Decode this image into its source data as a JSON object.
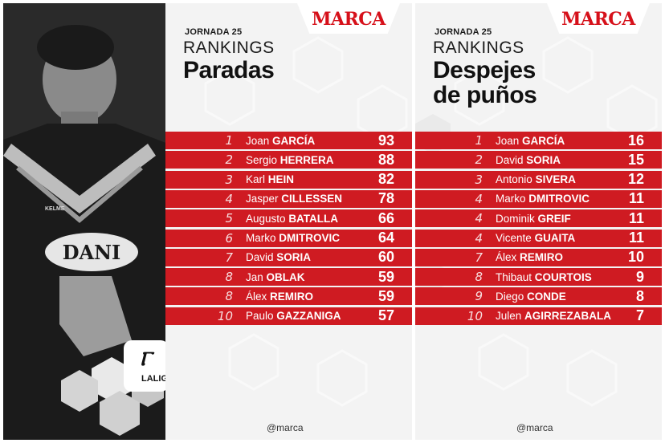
{
  "brand": "MARCA",
  "handle": "@marca",
  "league_logo_text": "LALIGA",
  "left": {
    "jornada": "JORNADA 25",
    "rankings": "RANKINGS",
    "title_lines": [
      "Paradas"
    ],
    "rows": [
      {
        "pos": "1",
        "first": "Joan",
        "last": "GARCÍA",
        "value": "93"
      },
      {
        "pos": "2",
        "first": "Sergio",
        "last": "HERRERA",
        "value": "88"
      },
      {
        "pos": "3",
        "first": "Karl",
        "last": "HEIN",
        "value": "82"
      },
      {
        "pos": "4",
        "first": "Jasper",
        "last": "CILLESSEN",
        "value": "78"
      },
      {
        "pos": "5",
        "first": "Augusto",
        "last": "BATALLA",
        "value": "66"
      },
      {
        "pos": "6",
        "first": "Marko",
        "last": "DMITROVIC",
        "value": "64"
      },
      {
        "pos": "7",
        "first": "David",
        "last": "SORIA",
        "value": "60"
      },
      {
        "pos": "8",
        "first": "Jan",
        "last": "OBLAK",
        "value": "59"
      },
      {
        "pos": "8",
        "first": "Álex",
        "last": "REMIRO",
        "value": "59"
      },
      {
        "pos": "10",
        "first": "Paulo",
        "last": "GAZZANIGA",
        "value": "57"
      }
    ]
  },
  "right": {
    "jornada": "JORNADA 25",
    "rankings": "RANKINGS",
    "title_lines": [
      "Despejes",
      "de puños"
    ],
    "rows": [
      {
        "pos": "1",
        "first": "Joan",
        "last": "GARCÍA",
        "value": "16"
      },
      {
        "pos": "2",
        "first": "David",
        "last": "SORIA",
        "value": "15"
      },
      {
        "pos": "3",
        "first": "Antonio",
        "last": "SIVERA",
        "value": "12"
      },
      {
        "pos": "4",
        "first": "Marko",
        "last": "DMITROVIC",
        "value": "11"
      },
      {
        "pos": "4",
        "first": "Dominik",
        "last": "GREIF",
        "value": "11"
      },
      {
        "pos": "4",
        "first": "Vicente",
        "last": "GUAITA",
        "value": "11"
      },
      {
        "pos": "7",
        "first": "Álex",
        "last": "REMIRO",
        "value": "10"
      },
      {
        "pos": "8",
        "first": "Thibaut",
        "last": "COURTOIS",
        "value": "9"
      },
      {
        "pos": "9",
        "first": "Diego",
        "last": "CONDE",
        "value": "8"
      },
      {
        "pos": "10",
        "first": "Julen",
        "last": "AGIRREZABALA",
        "value": "7"
      }
    ]
  },
  "photo": {
    "shirt_sponsor": "DANI",
    "kit_brand": "KELME"
  }
}
